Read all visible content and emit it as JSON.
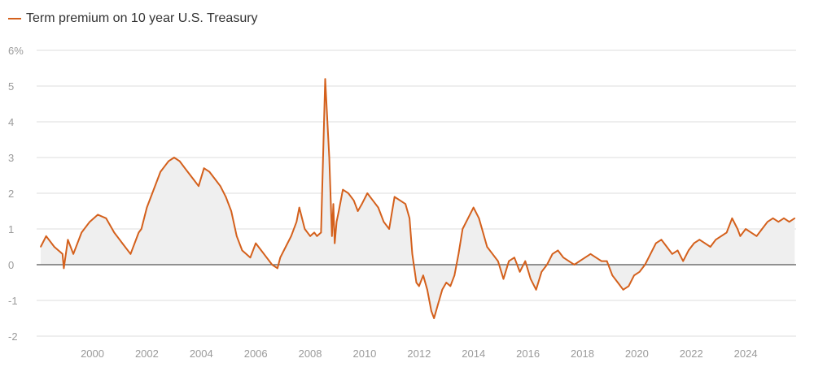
{
  "chart_data": {
    "type": "line",
    "title": "",
    "xlabel": "",
    "ylabel": "",
    "legend_placement": "top-left",
    "grid": true,
    "colors": {
      "line": "#d4601c",
      "area": "#efefef",
      "grid": "#dcdcdc",
      "zero_line": "#555555",
      "tick_text": "#9a9a9a"
    },
    "xlim": [
      1998.1,
      2025.85
    ],
    "ylim": [
      -2,
      6
    ],
    "x_tick_labels": [
      "2000",
      "2002",
      "2004",
      "2006",
      "2008",
      "2010",
      "2012",
      "2014",
      "2016",
      "2018",
      "2020",
      "2022",
      "2024"
    ],
    "y_tick_labels": [
      "6%",
      "5",
      "4",
      "3",
      "2",
      "1",
      "0",
      "-1",
      "-2"
    ],
    "series": [
      {
        "name": "Term premium on 10 year U.S. Treasury",
        "x": [
          1998.1,
          1998.3,
          1998.6,
          1998.9,
          1998.95,
          1999.1,
          1999.3,
          1999.6,
          1999.9,
          2000.2,
          2000.5,
          2000.8,
          2001.0,
          2001.1,
          2001.4,
          2001.7,
          2001.8,
          2002.0,
          2002.2,
          2002.5,
          2002.7,
          2002.8,
          2003.0,
          2003.2,
          2003.4,
          2003.5,
          2003.7,
          2003.9,
          2004.1,
          2004.3,
          2004.5,
          2004.7,
          2004.9,
          2005.1,
          2005.3,
          2005.5,
          2005.8,
          2006.0,
          2006.2,
          2006.4,
          2006.6,
          2006.8,
          2006.9,
          2007.1,
          2007.3,
          2007.5,
          2007.6,
          2007.8,
          2008.0,
          2008.15,
          2008.25,
          2008.4,
          2008.55,
          2008.7,
          2008.8,
          2008.85,
          2008.9,
          2008.97,
          2009.05,
          2009.2,
          2009.4,
          2009.6,
          2009.75,
          2009.9,
          2010.1,
          2010.3,
          2010.5,
          2010.7,
          2010.9,
          2011.1,
          2011.3,
          2011.5,
          2011.65,
          2011.75,
          2011.9,
          2012.0,
          2012.15,
          2012.3,
          2012.45,
          2012.55,
          2012.7,
          2012.85,
          2013.0,
          2013.15,
          2013.3,
          2013.45,
          2013.6,
          2013.8,
          2014.0,
          2014.2,
          2014.35,
          2014.5,
          2014.7,
          2014.9,
          2015.1,
          2015.3,
          2015.5,
          2015.7,
          2015.9,
          2016.1,
          2016.3,
          2016.5,
          2016.7,
          2016.9,
          2017.1,
          2017.3,
          2017.5,
          2017.7,
          2017.9,
          2018.1,
          2018.3,
          2018.5,
          2018.7,
          2018.9,
          2019.1,
          2019.3,
          2019.5,
          2019.7,
          2019.9,
          2020.1,
          2020.3,
          2020.5,
          2020.7,
          2020.9,
          2021.1,
          2021.3,
          2021.5,
          2021.7,
          2021.9,
          2022.1,
          2022.3,
          2022.5,
          2022.7,
          2022.9,
          2023.1,
          2023.3,
          2023.5,
          2023.7,
          2023.8,
          2024.0,
          2024.2,
          2024.4,
          2024.6,
          2024.8,
          2025.0,
          2025.2,
          2025.4,
          2025.6,
          2025.8
        ],
        "values": [
          0.5,
          0.8,
          0.5,
          0.3,
          -0.1,
          0.7,
          0.3,
          0.9,
          1.2,
          1.4,
          1.3,
          0.9,
          0.7,
          0.6,
          0.3,
          0.9,
          1.0,
          1.6,
          2.0,
          2.6,
          2.8,
          2.9,
          3.0,
          2.9,
          2.7,
          2.6,
          2.4,
          2.2,
          2.7,
          2.6,
          2.4,
          2.2,
          1.9,
          1.5,
          0.8,
          0.4,
          0.2,
          0.6,
          0.4,
          0.2,
          0.0,
          -0.1,
          0.2,
          0.5,
          0.8,
          1.2,
          1.6,
          1.0,
          0.8,
          0.9,
          0.8,
          0.9,
          5.2,
          3.0,
          0.8,
          1.7,
          0.6,
          1.2,
          1.5,
          2.1,
          2.0,
          1.8,
          1.5,
          1.7,
          2.0,
          1.8,
          1.6,
          1.2,
          1.0,
          1.9,
          1.8,
          1.7,
          1.3,
          0.3,
          -0.5,
          -0.6,
          -0.3,
          -0.7,
          -1.3,
          -1.5,
          -1.1,
          -0.7,
          -0.5,
          -0.6,
          -0.3,
          0.3,
          1.0,
          1.3,
          1.6,
          1.3,
          0.9,
          0.5,
          0.3,
          0.1,
          -0.4,
          0.1,
          0.2,
          -0.2,
          0.1,
          -0.4,
          -0.7,
          -0.2,
          0.0,
          0.3,
          0.4,
          0.2,
          0.1,
          0.0,
          0.1,
          0.2,
          0.3,
          0.2,
          0.1,
          0.1,
          -0.3,
          -0.5,
          -0.7,
          -0.6,
          -0.3,
          -0.2,
          0.0,
          0.3,
          0.6,
          0.7,
          0.5,
          0.3,
          0.4,
          0.1,
          0.4,
          0.6,
          0.7,
          0.6,
          0.5,
          0.7,
          0.8,
          0.9,
          1.3,
          1.0,
          0.8,
          1.0,
          0.9,
          0.8,
          1.0,
          1.2,
          1.3,
          1.2,
          1.3,
          1.2,
          1.3
        ]
      }
    ]
  }
}
